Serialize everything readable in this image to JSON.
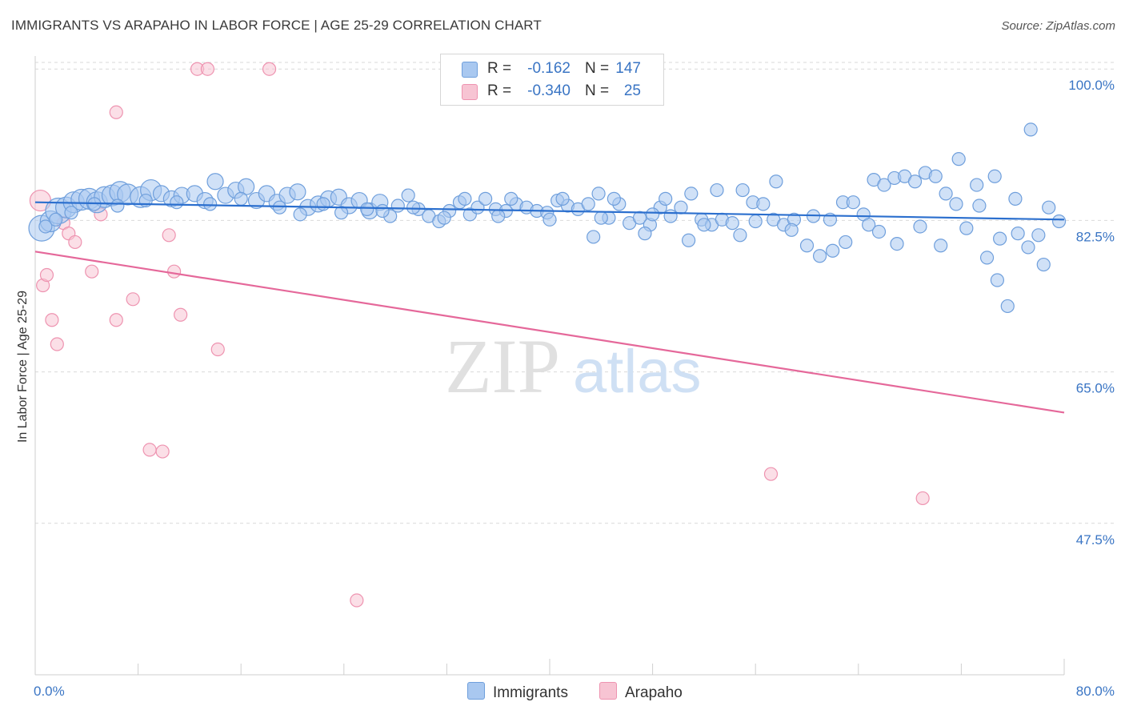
{
  "title": "IMMIGRANTS VS ARAPAHO IN LABOR FORCE | AGE 25-29 CORRELATION CHART",
  "source": "Source: ZipAtlas.com",
  "watermark": {
    "zip": "ZIP",
    "atlas": "atlas"
  },
  "colors": {
    "blue_fill": "#a9c8f0",
    "blue_stroke": "#6f9fdc",
    "blue_line": "#2b6fce",
    "pink_fill": "#f7c4d3",
    "pink_stroke": "#ee93b0",
    "pink_line": "#e5689a",
    "tick_label": "#3a75c4",
    "grid": "#d9d9d9"
  },
  "legend_top": [
    {
      "series": "Immigrants",
      "r_label": "R =",
      "r_value": "-0.162",
      "n_label": "N =",
      "n_value": "147"
    },
    {
      "series": "Arapaho",
      "r_label": "R =",
      "r_value": "-0.340",
      "n_label": "N =",
      "n_value": "25"
    }
  ],
  "legend_bottom": [
    "Immigrants",
    "Arapaho"
  ],
  "chart_data": {
    "type": "scatter",
    "title": "IMMIGRANTS VS ARAPAHO IN LABOR FORCE | AGE 25-29 CORRELATION CHART",
    "xlabel": "",
    "ylabel": "In Labor Force | Age 25-29",
    "xlim": [
      0,
      80
    ],
    "ylim": [
      30,
      101.5
    ],
    "x_tick_labels": [
      "0.0%",
      "80.0%"
    ],
    "y_ticks": [
      47.5,
      65.0,
      82.5,
      100.0
    ],
    "y_tick_labels": [
      "47.5%",
      "65.0%",
      "82.5%",
      "100.0%"
    ],
    "grid": true,
    "legend_position": "top-center",
    "series": [
      {
        "name": "Immigrants",
        "r": -0.162,
        "n": 147,
        "trend": {
          "x": [
            0,
            80
          ],
          "y": [
            84.6,
            82.6
          ]
        },
        "points": [
          [
            0.5,
            81.6,
            3
          ],
          [
            1.2,
            82.4,
            2
          ],
          [
            1.8,
            83.6,
            3
          ],
          [
            2.4,
            84.0,
            2
          ],
          [
            3.0,
            84.6,
            2
          ],
          [
            3.6,
            84.9,
            2
          ],
          [
            4.2,
            85.0,
            2
          ],
          [
            4.8,
            84.6,
            2
          ],
          [
            5.4,
            85.2,
            2
          ],
          [
            6.0,
            85.4,
            2
          ],
          [
            6.6,
            85.8,
            2
          ],
          [
            7.2,
            85.5,
            2
          ],
          [
            8.2,
            85.2,
            2
          ],
          [
            9.0,
            86.0,
            2
          ],
          [
            9.8,
            85.6,
            1
          ],
          [
            10.6,
            85.0,
            1
          ],
          [
            11.4,
            85.4,
            1
          ],
          [
            12.4,
            85.6,
            1
          ],
          [
            13.2,
            84.8,
            1
          ],
          [
            14.0,
            87.0,
            1
          ],
          [
            14.8,
            85.4,
            1
          ],
          [
            15.6,
            86.0,
            1
          ],
          [
            16.4,
            86.4,
            1
          ],
          [
            17.2,
            84.8,
            1
          ],
          [
            18.0,
            85.6,
            1
          ],
          [
            18.8,
            84.6,
            1
          ],
          [
            19.6,
            85.4,
            1
          ],
          [
            20.4,
            85.8,
            1
          ],
          [
            21.2,
            84.0,
            1
          ],
          [
            22.0,
            84.4,
            1
          ],
          [
            22.8,
            85.0,
            1
          ],
          [
            23.6,
            85.2,
            1
          ],
          [
            24.4,
            84.2,
            1
          ],
          [
            25.2,
            84.8,
            1
          ],
          [
            26.0,
            83.6,
            1
          ],
          [
            26.8,
            84.6,
            1
          ],
          [
            27.6,
            83.0,
            0
          ],
          [
            28.2,
            84.2,
            0
          ],
          [
            29.0,
            85.4,
            0
          ],
          [
            29.8,
            83.8,
            0
          ],
          [
            30.6,
            83.0,
            0
          ],
          [
            31.4,
            82.4,
            0
          ],
          [
            32.2,
            83.6,
            0
          ],
          [
            33.0,
            84.6,
            0
          ],
          [
            33.8,
            83.2,
            0
          ],
          [
            34.4,
            84.0,
            0
          ],
          [
            35.0,
            85.0,
            0
          ],
          [
            35.8,
            83.8,
            0
          ],
          [
            36.6,
            83.6,
            0
          ],
          [
            37.4,
            84.4,
            0
          ],
          [
            38.2,
            84.0,
            0
          ],
          [
            39.0,
            83.6,
            0
          ],
          [
            39.8,
            83.4,
            0
          ],
          [
            40.6,
            84.8,
            0
          ],
          [
            41.4,
            84.2,
            0
          ],
          [
            42.2,
            83.8,
            0
          ],
          [
            43.0,
            84.4,
            0
          ],
          [
            43.8,
            85.6,
            0
          ],
          [
            44.6,
            82.8,
            0
          ],
          [
            45.4,
            84.4,
            0
          ],
          [
            46.2,
            82.2,
            0
          ],
          [
            47.0,
            82.8,
            0
          ],
          [
            47.8,
            82.0,
            0
          ],
          [
            48.6,
            84.0,
            0
          ],
          [
            49.4,
            83.0,
            0
          ],
          [
            50.2,
            84.0,
            0
          ],
          [
            51.0,
            85.6,
            0
          ],
          [
            51.8,
            82.6,
            0
          ],
          [
            52.6,
            82.0,
            0
          ],
          [
            53.4,
            82.6,
            0
          ],
          [
            54.2,
            82.2,
            0
          ],
          [
            55.0,
            86.0,
            0
          ],
          [
            55.8,
            84.6,
            0
          ],
          [
            56.6,
            84.4,
            0
          ],
          [
            57.4,
            82.6,
            0
          ],
          [
            58.2,
            82.0,
            0
          ],
          [
            59.0,
            82.6,
            0
          ],
          [
            60.0,
            79.6,
            0
          ],
          [
            61.0,
            78.4,
            0
          ],
          [
            62.0,
            79.0,
            0
          ],
          [
            62.8,
            84.6,
            0
          ],
          [
            63.6,
            84.6,
            0
          ],
          [
            64.4,
            83.2,
            0
          ],
          [
            65.2,
            87.2,
            0
          ],
          [
            66.0,
            86.6,
            0
          ],
          [
            66.8,
            87.4,
            0
          ],
          [
            67.6,
            87.6,
            0
          ],
          [
            68.4,
            87.0,
            0
          ],
          [
            69.2,
            88.0,
            0
          ],
          [
            70.0,
            87.6,
            0
          ],
          [
            70.8,
            85.6,
            0
          ],
          [
            71.6,
            84.4,
            0
          ],
          [
            72.4,
            81.6,
            0
          ],
          [
            73.2,
            86.6,
            0
          ],
          [
            74.0,
            78.2,
            0
          ],
          [
            74.8,
            75.6,
            0
          ],
          [
            75.6,
            72.6,
            0
          ],
          [
            76.4,
            81.0,
            0
          ],
          [
            77.2,
            79.4,
            0
          ],
          [
            78.0,
            80.8,
            0
          ],
          [
            78.8,
            84.0,
            0
          ],
          [
            79.6,
            82.4,
            0
          ],
          [
            20.6,
            83.2,
            0
          ],
          [
            23.8,
            83.4,
            0
          ],
          [
            27.0,
            83.6,
            0
          ],
          [
            31.8,
            82.8,
            0
          ],
          [
            36.0,
            83.0,
            0
          ],
          [
            40.0,
            82.6,
            0
          ],
          [
            44.0,
            82.8,
            0
          ],
          [
            48.0,
            83.2,
            0
          ],
          [
            52.0,
            82.0,
            0
          ],
          [
            56.0,
            82.4,
            0
          ],
          [
            60.5,
            83.0,
            0
          ],
          [
            64.8,
            82.0,
            0
          ],
          [
            68.8,
            81.8,
            0
          ],
          [
            71.8,
            89.6,
            0
          ],
          [
            74.6,
            87.6,
            0
          ],
          [
            77.4,
            93.0,
            0
          ],
          [
            73.4,
            84.2,
            0
          ],
          [
            76.2,
            85.0,
            0
          ],
          [
            65.6,
            81.2,
            0
          ],
          [
            57.6,
            87.0,
            0
          ],
          [
            53.0,
            86.0,
            0
          ],
          [
            49.0,
            85.0,
            0
          ],
          [
            45.0,
            85.0,
            0
          ],
          [
            41.0,
            85.0,
            0
          ],
          [
            37.0,
            85.0,
            0
          ],
          [
            33.4,
            85.0,
            0
          ],
          [
            29.4,
            84.0,
            0
          ],
          [
            25.8,
            83.8,
            0
          ],
          [
            22.4,
            84.4,
            0
          ],
          [
            19.0,
            84.0,
            0
          ],
          [
            16.0,
            85.0,
            0
          ],
          [
            13.6,
            84.4,
            0
          ],
          [
            11.0,
            84.6,
            0
          ],
          [
            8.6,
            84.8,
            0
          ],
          [
            6.4,
            84.2,
            0
          ],
          [
            4.6,
            84.4,
            0
          ],
          [
            2.8,
            83.4,
            0
          ],
          [
            1.6,
            82.6,
            0
          ],
          [
            0.8,
            81.8,
            0
          ],
          [
            63.0,
            80.0,
            0
          ],
          [
            67.0,
            79.8,
            0
          ],
          [
            70.4,
            79.6,
            0
          ],
          [
            75.0,
            80.4,
            0
          ],
          [
            78.4,
            77.4,
            0
          ],
          [
            61.8,
            82.6,
            0
          ],
          [
            58.8,
            81.4,
            0
          ],
          [
            54.8,
            80.8,
            0
          ],
          [
            50.8,
            80.2,
            0
          ],
          [
            47.4,
            81.0,
            0
          ],
          [
            43.4,
            80.6,
            0
          ]
        ]
      },
      {
        "name": "Arapaho",
        "r": -0.34,
        "n": 25,
        "trend": {
          "x": [
            0,
            80
          ],
          "y": [
            78.9,
            60.3
          ]
        },
        "points": [
          [
            0.4,
            84.8,
            2
          ],
          [
            0.6,
            75.0,
            0
          ],
          [
            0.9,
            76.2,
            0
          ],
          [
            1.3,
            71.0,
            0
          ],
          [
            1.7,
            68.2,
            0
          ],
          [
            2.2,
            82.2,
            0
          ],
          [
            2.6,
            81.0,
            0
          ],
          [
            3.1,
            80.0,
            0
          ],
          [
            4.4,
            76.6,
            0
          ],
          [
            5.1,
            83.2,
            0
          ],
          [
            6.3,
            95.0,
            0
          ],
          [
            6.3,
            71.0,
            0
          ],
          [
            7.6,
            73.4,
            0
          ],
          [
            8.9,
            56.0,
            0
          ],
          [
            9.9,
            55.8,
            0
          ],
          [
            10.4,
            80.8,
            0
          ],
          [
            10.8,
            76.6,
            0
          ],
          [
            11.3,
            71.6,
            0
          ],
          [
            12.6,
            100.0,
            0
          ],
          [
            13.4,
            100.0,
            0
          ],
          [
            14.2,
            67.6,
            0
          ],
          [
            18.2,
            100.0,
            0
          ],
          [
            25.0,
            38.6,
            0
          ],
          [
            57.2,
            53.2,
            0
          ],
          [
            69.0,
            50.4,
            0
          ]
        ]
      }
    ]
  }
}
